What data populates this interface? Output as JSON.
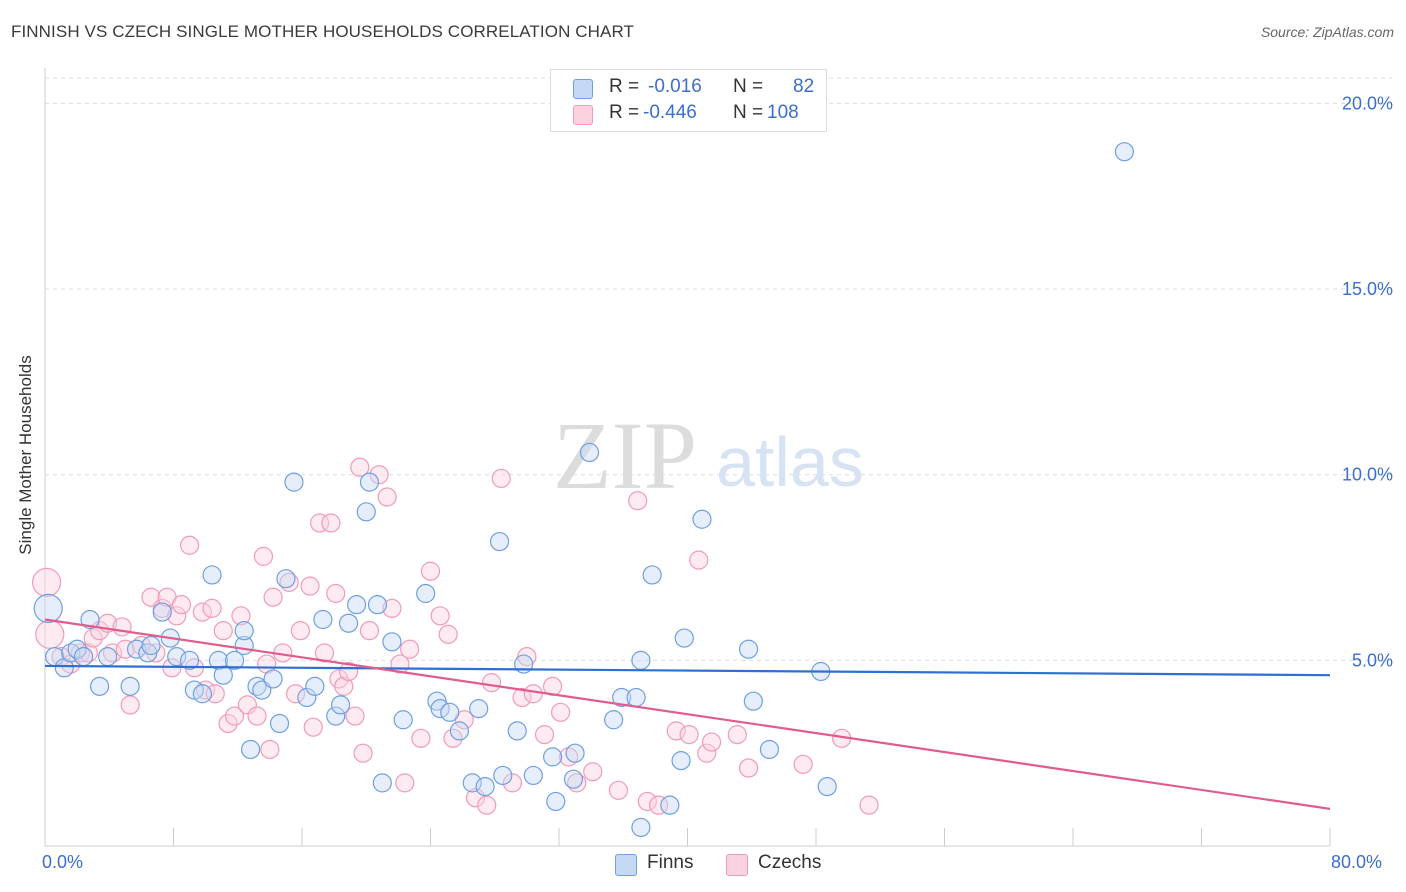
{
  "title": "FINNISH VS CZECH SINGLE MOTHER HOUSEHOLDS CORRELATION CHART",
  "source": "Source: ZipAtlas.com",
  "watermark": {
    "zip": "ZIP",
    "atlas": "atlas"
  },
  "legend": {
    "rows": [
      {
        "r_label": "R =",
        "r_value": "-0.016",
        "n_label": "N =",
        "n_value": "82"
      },
      {
        "r_label": "R =",
        "r_value": "-0.446",
        "n_label": "N =",
        "n_value": "108"
      }
    ]
  },
  "bottom_legend": {
    "finns": "Finns",
    "czechs": "Czechs"
  },
  "x_tick_labels": {
    "left": "0.0%",
    "right": "80.0%"
  },
  "chart_data": {
    "type": "scatter",
    "xlabel": "",
    "ylabel": "Single Mother Households",
    "xlim": [
      0,
      80
    ],
    "ylim": [
      0,
      20.9
    ],
    "y_ticks": [
      5,
      10,
      15,
      20
    ],
    "y_tick_labels": [
      "5.0%",
      "10.0%",
      "15.0%",
      "20.0%"
    ],
    "grid": "horizontal dashed",
    "colors": {
      "finns": "#6f9fe3",
      "czechs": "#f29ab8",
      "finns_line": "#2d6fd2",
      "czechs_line": "#e05c8e"
    },
    "series": [
      {
        "name": "Finns",
        "trend": {
          "x": [
            0,
            80
          ],
          "y": [
            4.85,
            4.6
          ]
        },
        "points": [
          [
            0.2,
            6.4
          ],
          [
            0.6,
            5.1
          ],
          [
            1.2,
            4.8
          ],
          [
            1.6,
            5.2
          ],
          [
            2.0,
            5.3
          ],
          [
            2.4,
            5.1
          ],
          [
            2.8,
            6.1
          ],
          [
            3.4,
            4.3
          ],
          [
            3.9,
            5.1
          ],
          [
            5.3,
            4.3
          ],
          [
            5.7,
            5.3
          ],
          [
            6.4,
            5.2
          ],
          [
            6.6,
            5.4
          ],
          [
            7.3,
            6.3
          ],
          [
            7.8,
            5.6
          ],
          [
            8.2,
            5.1
          ],
          [
            9.0,
            5.0
          ],
          [
            9.3,
            4.2
          ],
          [
            9.8,
            4.1
          ],
          [
            10.4,
            7.3
          ],
          [
            10.8,
            5.0
          ],
          [
            11.1,
            4.6
          ],
          [
            11.8,
            5.0
          ],
          [
            12.4,
            5.4
          ],
          [
            12.4,
            5.8
          ],
          [
            12.8,
            2.6
          ],
          [
            13.2,
            4.3
          ],
          [
            13.5,
            4.2
          ],
          [
            14.2,
            4.5
          ],
          [
            14.6,
            3.3
          ],
          [
            15.0,
            7.2
          ],
          [
            15.5,
            9.8
          ],
          [
            16.3,
            4.0
          ],
          [
            16.8,
            4.3
          ],
          [
            17.3,
            6.1
          ],
          [
            18.1,
            3.5
          ],
          [
            18.4,
            3.8
          ],
          [
            18.9,
            6.0
          ],
          [
            19.4,
            6.5
          ],
          [
            20.0,
            9.0
          ],
          [
            20.2,
            9.8
          ],
          [
            20.7,
            6.5
          ],
          [
            21.0,
            1.7
          ],
          [
            21.6,
            5.5
          ],
          [
            22.3,
            3.4
          ],
          [
            23.7,
            6.8
          ],
          [
            24.4,
            3.9
          ],
          [
            24.6,
            3.7
          ],
          [
            25.2,
            3.6
          ],
          [
            25.8,
            3.1
          ],
          [
            26.6,
            1.7
          ],
          [
            27.0,
            3.7
          ],
          [
            27.4,
            1.6
          ],
          [
            28.3,
            8.2
          ],
          [
            28.5,
            1.9
          ],
          [
            29.4,
            3.1
          ],
          [
            29.8,
            4.9
          ],
          [
            30.4,
            1.9
          ],
          [
            31.6,
            2.4
          ],
          [
            31.8,
            1.2
          ],
          [
            32.9,
            1.8
          ],
          [
            33.0,
            2.5
          ],
          [
            33.9,
            10.6
          ],
          [
            35.4,
            3.4
          ],
          [
            35.9,
            4.0
          ],
          [
            36.8,
            4.0
          ],
          [
            37.1,
            5.0
          ],
          [
            37.1,
            0.5
          ],
          [
            37.8,
            7.3
          ],
          [
            38.9,
            1.1
          ],
          [
            39.6,
            2.3
          ],
          [
            39.8,
            5.6
          ],
          [
            40.9,
            8.8
          ],
          [
            43.8,
            5.3
          ],
          [
            44.1,
            3.9
          ],
          [
            45.1,
            2.6
          ],
          [
            48.3,
            4.7
          ],
          [
            48.7,
            1.6
          ],
          [
            67.2,
            18.7
          ]
        ]
      },
      {
        "name": "Czechs",
        "trend": {
          "x": [
            0,
            80
          ],
          "y": [
            6.1,
            1.0
          ]
        },
        "points": [
          [
            0.1,
            7.1
          ],
          [
            0.3,
            5.7
          ],
          [
            1.0,
            5.1
          ],
          [
            1.6,
            4.9
          ],
          [
            2.2,
            5.2
          ],
          [
            2.7,
            5.2
          ],
          [
            3.0,
            5.6
          ],
          [
            3.4,
            5.8
          ],
          [
            3.9,
            6.0
          ],
          [
            4.2,
            5.2
          ],
          [
            4.8,
            5.9
          ],
          [
            5.0,
            5.3
          ],
          [
            5.3,
            3.8
          ],
          [
            6.0,
            5.4
          ],
          [
            6.6,
            6.7
          ],
          [
            6.9,
            5.2
          ],
          [
            7.3,
            6.4
          ],
          [
            7.6,
            6.7
          ],
          [
            7.9,
            4.8
          ],
          [
            8.2,
            6.2
          ],
          [
            8.5,
            6.5
          ],
          [
            9.0,
            8.1
          ],
          [
            9.3,
            4.8
          ],
          [
            9.8,
            6.3
          ],
          [
            10.0,
            4.2
          ],
          [
            10.4,
            6.4
          ],
          [
            10.6,
            4.1
          ],
          [
            11.1,
            5.8
          ],
          [
            11.4,
            3.3
          ],
          [
            11.8,
            3.5
          ],
          [
            12.2,
            6.2
          ],
          [
            12.6,
            3.8
          ],
          [
            13.2,
            3.5
          ],
          [
            13.6,
            7.8
          ],
          [
            13.8,
            4.9
          ],
          [
            14.0,
            2.6
          ],
          [
            14.2,
            6.7
          ],
          [
            14.8,
            5.2
          ],
          [
            15.2,
            7.1
          ],
          [
            15.6,
            4.1
          ],
          [
            15.9,
            5.8
          ],
          [
            16.5,
            7.0
          ],
          [
            16.7,
            3.2
          ],
          [
            17.1,
            8.7
          ],
          [
            17.4,
            5.2
          ],
          [
            17.8,
            8.7
          ],
          [
            18.1,
            6.8
          ],
          [
            18.3,
            4.5
          ],
          [
            18.6,
            4.3
          ],
          [
            18.9,
            4.7
          ],
          [
            19.3,
            3.5
          ],
          [
            19.6,
            10.2
          ],
          [
            19.8,
            2.5
          ],
          [
            20.2,
            5.8
          ],
          [
            20.8,
            10.0
          ],
          [
            21.3,
            9.4
          ],
          [
            21.6,
            6.4
          ],
          [
            22.1,
            4.9
          ],
          [
            22.4,
            1.7
          ],
          [
            22.7,
            5.3
          ],
          [
            23.4,
            2.9
          ],
          [
            24.0,
            7.4
          ],
          [
            24.6,
            6.2
          ],
          [
            25.1,
            5.7
          ],
          [
            25.4,
            2.9
          ],
          [
            26.1,
            3.4
          ],
          [
            26.8,
            1.3
          ],
          [
            27.5,
            1.1
          ],
          [
            27.8,
            4.4
          ],
          [
            28.4,
            9.9
          ],
          [
            29.1,
            1.7
          ],
          [
            29.7,
            4.0
          ],
          [
            30.0,
            5.1
          ],
          [
            30.4,
            4.1
          ],
          [
            31.1,
            3.0
          ],
          [
            31.6,
            4.3
          ],
          [
            32.1,
            3.6
          ],
          [
            32.6,
            2.4
          ],
          [
            33.1,
            1.7
          ],
          [
            34.1,
            2.0
          ],
          [
            35.7,
            1.5
          ],
          [
            36.9,
            9.3
          ],
          [
            37.5,
            1.2
          ],
          [
            38.2,
            1.1
          ],
          [
            39.3,
            3.1
          ],
          [
            40.1,
            3.0
          ],
          [
            40.7,
            7.7
          ],
          [
            41.2,
            2.5
          ],
          [
            41.5,
            2.8
          ],
          [
            43.1,
            3.0
          ],
          [
            43.8,
            2.1
          ],
          [
            47.2,
            2.2
          ],
          [
            49.6,
            2.9
          ],
          [
            51.3,
            1.1
          ]
        ]
      }
    ]
  }
}
